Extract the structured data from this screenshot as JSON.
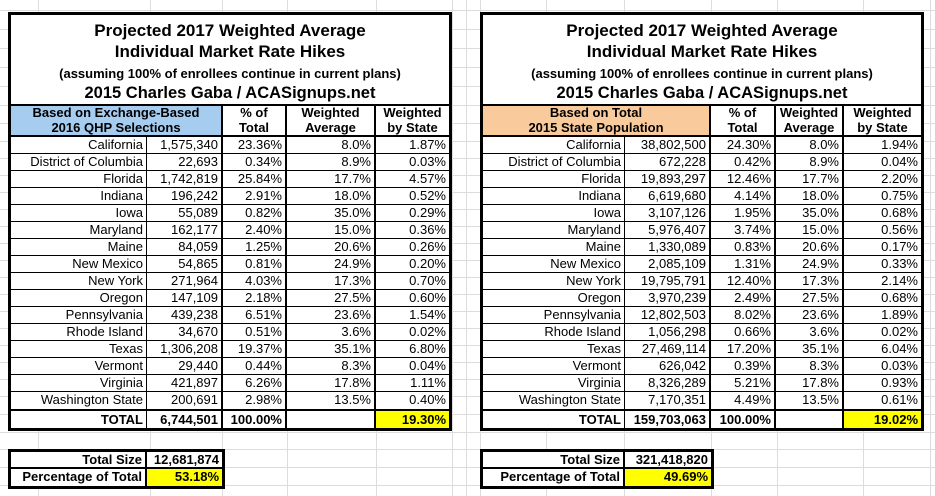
{
  "title": {
    "line1": "Projected 2017 Weighted Average",
    "line2": "Individual Market Rate Hikes",
    "subtitle": "(assuming 100% of enrollees continue in current plans)",
    "byline": "2015 Charles Gaba / ACASignups.net"
  },
  "column_headers": {
    "pct_of_total": "% of\nTotal",
    "weighted_average": "Weighted\nAverage",
    "weighted_by_state": "Weighted\nby State"
  },
  "colors": {
    "qhp_header_bg": "#A6CCF0",
    "population_header_bg": "#F9CB9C",
    "highlight_yellow": "#FFFF00",
    "gridline": "#DCDCDC"
  },
  "panels": [
    {
      "group_header": "Based on Exchange-Based\n2016 QHP Selections",
      "rows": [
        {
          "state": "California",
          "value": "1,575,340",
          "pct": "23.36%",
          "wavg": "8.0%",
          "wstate": "1.87%"
        },
        {
          "state": "District of Columbia",
          "value": "22,693",
          "pct": "0.34%",
          "wavg": "8.9%",
          "wstate": "0.03%"
        },
        {
          "state": "Florida",
          "value": "1,742,819",
          "pct": "25.84%",
          "wavg": "17.7%",
          "wstate": "4.57%"
        },
        {
          "state": "Indiana",
          "value": "196,242",
          "pct": "2.91%",
          "wavg": "18.0%",
          "wstate": "0.52%"
        },
        {
          "state": "Iowa",
          "value": "55,089",
          "pct": "0.82%",
          "wavg": "35.0%",
          "wstate": "0.29%"
        },
        {
          "state": "Maryland",
          "value": "162,177",
          "pct": "2.40%",
          "wavg": "15.0%",
          "wstate": "0.36%"
        },
        {
          "state": "Maine",
          "value": "84,059",
          "pct": "1.25%",
          "wavg": "20.6%",
          "wstate": "0.26%"
        },
        {
          "state": "New Mexico",
          "value": "54,865",
          "pct": "0.81%",
          "wavg": "24.9%",
          "wstate": "0.20%"
        },
        {
          "state": "New York",
          "value": "271,964",
          "pct": "4.03%",
          "wavg": "17.3%",
          "wstate": "0.70%"
        },
        {
          "state": "Oregon",
          "value": "147,109",
          "pct": "2.18%",
          "wavg": "27.5%",
          "wstate": "0.60%"
        },
        {
          "state": "Pennsylvania",
          "value": "439,238",
          "pct": "6.51%",
          "wavg": "23.6%",
          "wstate": "1.54%"
        },
        {
          "state": "Rhode Island",
          "value": "34,670",
          "pct": "0.51%",
          "wavg": "3.6%",
          "wstate": "0.02%"
        },
        {
          "state": "Texas",
          "value": "1,306,208",
          "pct": "19.37%",
          "wavg": "35.1%",
          "wstate": "6.80%"
        },
        {
          "state": "Vermont",
          "value": "29,440",
          "pct": "0.44%",
          "wavg": "8.3%",
          "wstate": "0.04%"
        },
        {
          "state": "Virginia",
          "value": "421,897",
          "pct": "6.26%",
          "wavg": "17.8%",
          "wstate": "1.11%"
        },
        {
          "state": "Washington State",
          "value": "200,691",
          "pct": "2.98%",
          "wavg": "13.5%",
          "wstate": "0.40%"
        }
      ],
      "total_row": {
        "label": "TOTAL",
        "value": "6,744,501",
        "pct": "100.00%",
        "wavg": "",
        "wstate": "19.30%"
      },
      "footer": {
        "size_label": "Total Size",
        "size_value": "12,681,874",
        "pct_label": "Percentage of Total",
        "pct_value": "53.18%"
      }
    },
    {
      "group_header": "Based on Total\n2015 State Population",
      "rows": [
        {
          "state": "California",
          "value": "38,802,500",
          "pct": "24.30%",
          "wavg": "8.0%",
          "wstate": "1.94%"
        },
        {
          "state": "District of Columbia",
          "value": "672,228",
          "pct": "0.42%",
          "wavg": "8.9%",
          "wstate": "0.04%"
        },
        {
          "state": "Florida",
          "value": "19,893,297",
          "pct": "12.46%",
          "wavg": "17.7%",
          "wstate": "2.20%"
        },
        {
          "state": "Indiana",
          "value": "6,619,680",
          "pct": "4.14%",
          "wavg": "18.0%",
          "wstate": "0.75%"
        },
        {
          "state": "Iowa",
          "value": "3,107,126",
          "pct": "1.95%",
          "wavg": "35.0%",
          "wstate": "0.68%"
        },
        {
          "state": "Maryland",
          "value": "5,976,407",
          "pct": "3.74%",
          "wavg": "15.0%",
          "wstate": "0.56%"
        },
        {
          "state": "Maine",
          "value": "1,330,089",
          "pct": "0.83%",
          "wavg": "20.6%",
          "wstate": "0.17%"
        },
        {
          "state": "New Mexico",
          "value": "2,085,109",
          "pct": "1.31%",
          "wavg": "24.9%",
          "wstate": "0.33%"
        },
        {
          "state": "New York",
          "value": "19,795,791",
          "pct": "12.40%",
          "wavg": "17.3%",
          "wstate": "2.14%"
        },
        {
          "state": "Oregon",
          "value": "3,970,239",
          "pct": "2.49%",
          "wavg": "27.5%",
          "wstate": "0.68%"
        },
        {
          "state": "Pennsylvania",
          "value": "12,802,503",
          "pct": "8.02%",
          "wavg": "23.6%",
          "wstate": "1.89%"
        },
        {
          "state": "Rhode Island",
          "value": "1,056,298",
          "pct": "0.66%",
          "wavg": "3.6%",
          "wstate": "0.02%"
        },
        {
          "state": "Texas",
          "value": "27,469,114",
          "pct": "17.20%",
          "wavg": "35.1%",
          "wstate": "6.04%"
        },
        {
          "state": "Vermont",
          "value": "626,042",
          "pct": "0.39%",
          "wavg": "8.3%",
          "wstate": "0.03%"
        },
        {
          "state": "Virginia",
          "value": "8,326,289",
          "pct": "5.21%",
          "wavg": "17.8%",
          "wstate": "0.93%"
        },
        {
          "state": "Washington State",
          "value": "7,170,351",
          "pct": "4.49%",
          "wavg": "13.5%",
          "wstate": "0.61%"
        }
      ],
      "total_row": {
        "label": "TOTAL",
        "value": "159,703,063",
        "pct": "100.00%",
        "wavg": "",
        "wstate": "19.02%"
      },
      "footer": {
        "size_label": "Total Size",
        "size_value": "321,418,820",
        "pct_label": "Percentage of Total",
        "pct_value": "49.69%"
      }
    }
  ]
}
